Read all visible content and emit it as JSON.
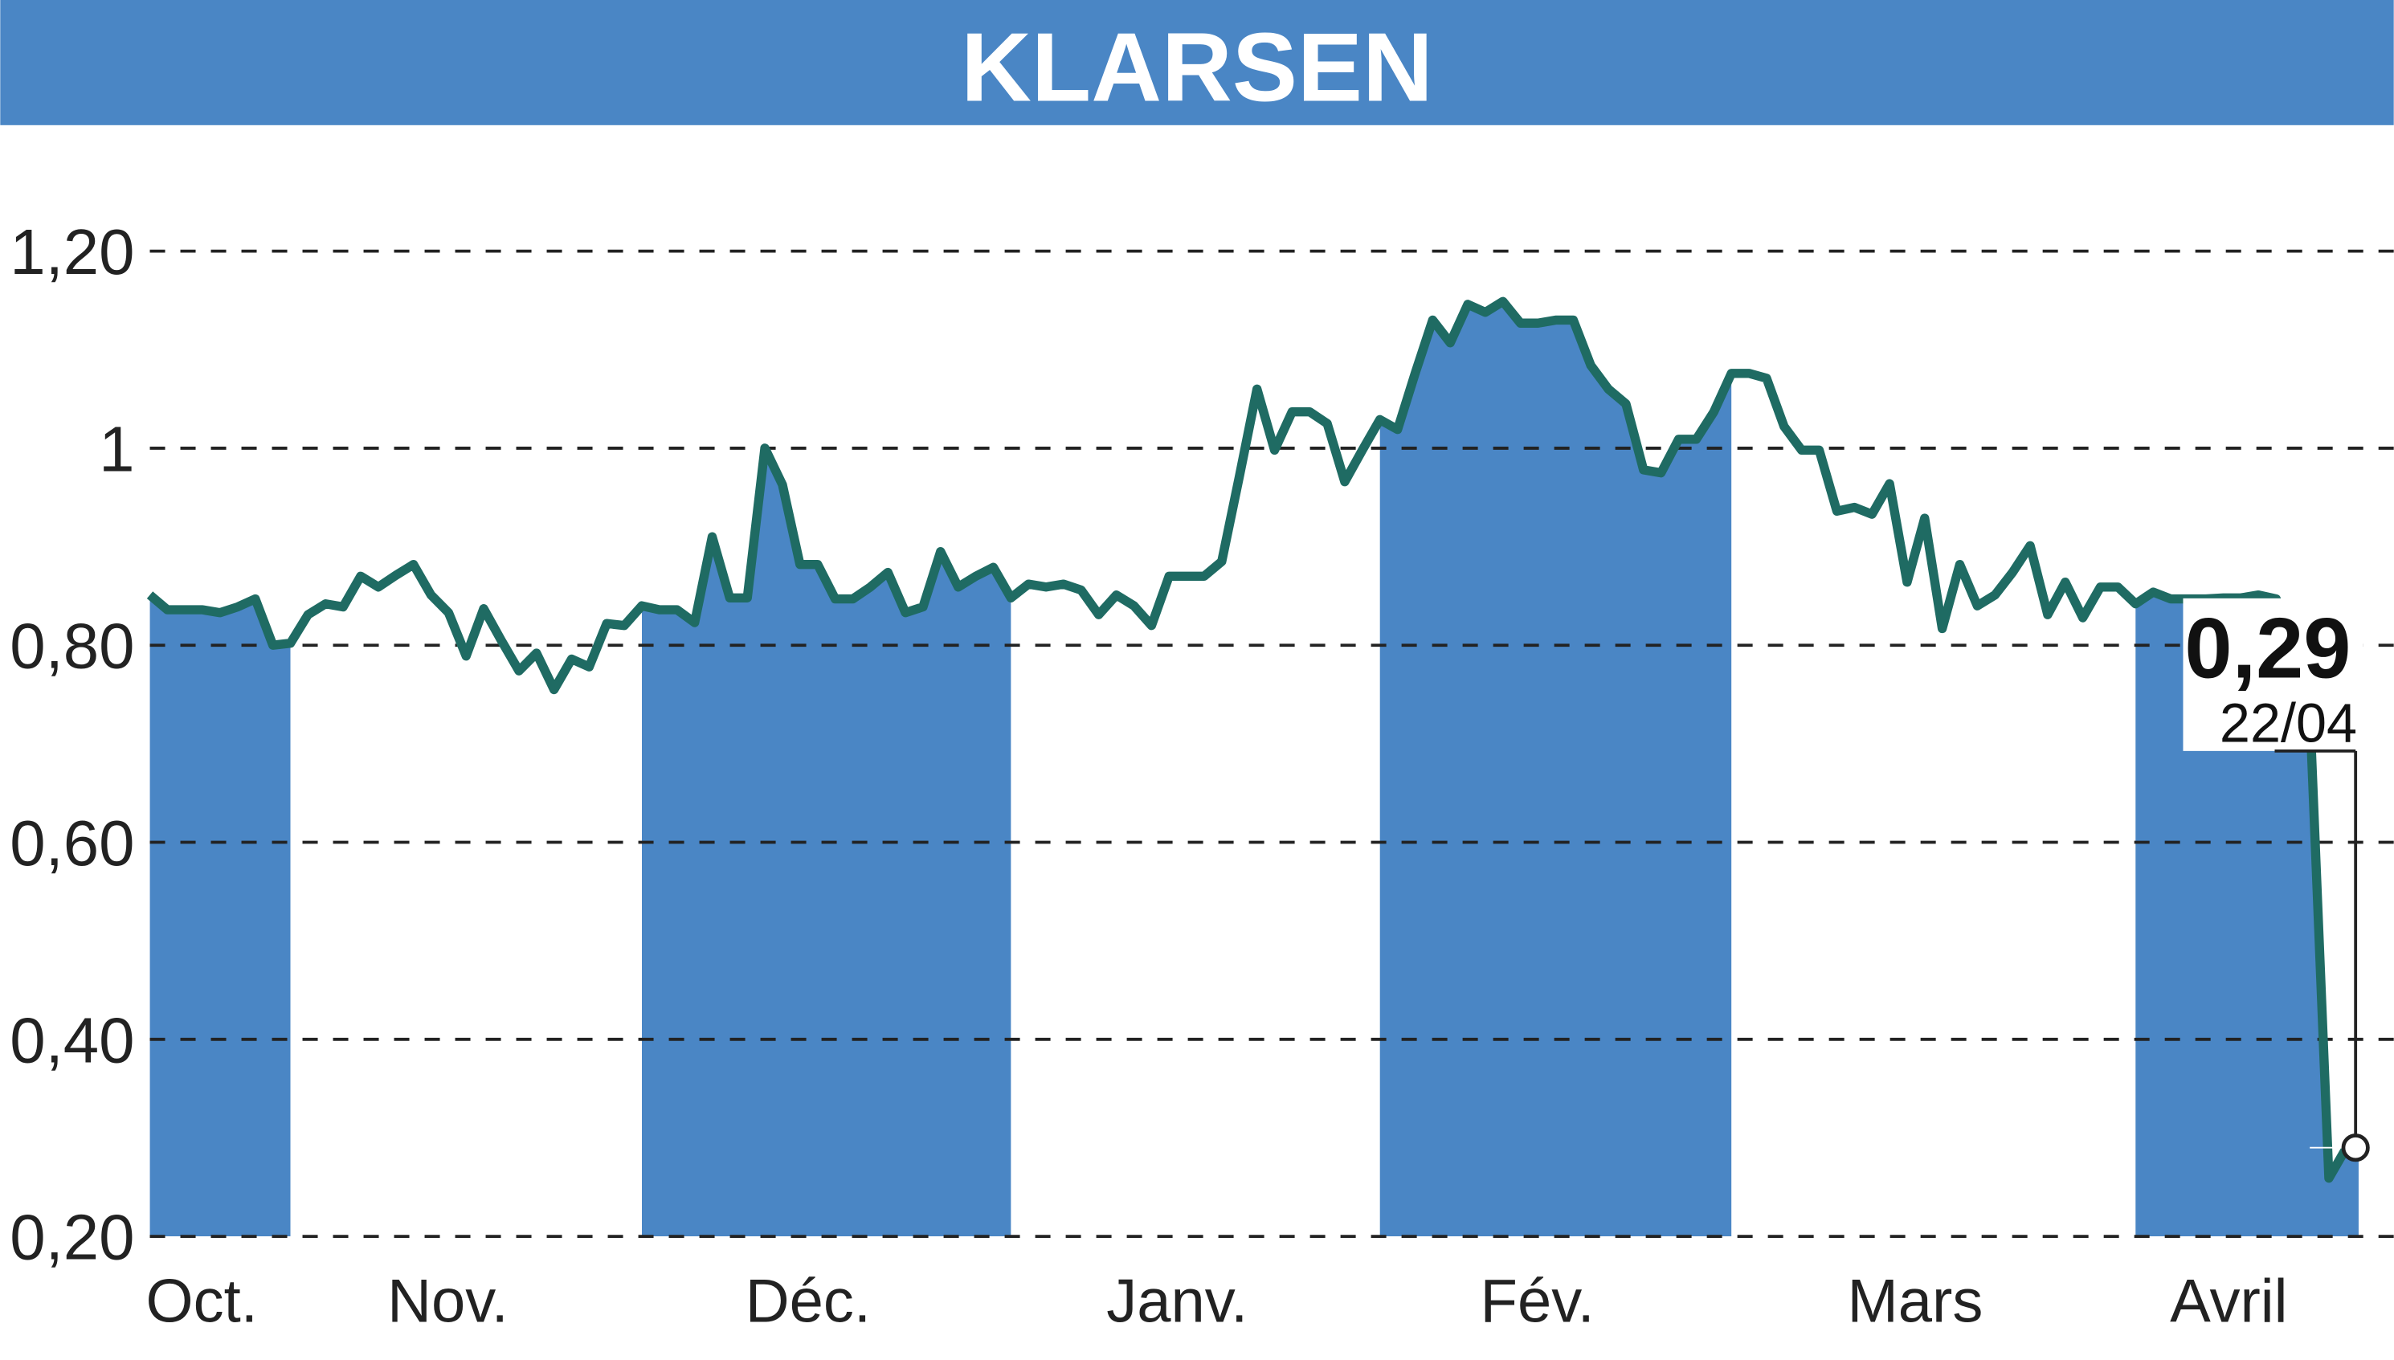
{
  "chart_data": {
    "type": "line",
    "title": "KLARSEN",
    "categories": [
      "Oct.",
      null,
      null,
      null,
      null,
      null,
      null,
      null,
      "Nov.",
      null,
      null,
      null,
      null,
      null,
      null,
      null,
      null,
      null,
      null,
      null,
      null,
      null,
      null,
      null,
      null,
      null,
      null,
      null,
      "Déc.",
      null,
      null,
      null,
      null,
      null,
      null,
      null,
      null,
      null,
      null,
      null,
      null,
      null,
      null,
      null,
      null,
      null,
      null,
      null,
      null,
      "Janv.",
      null,
      null,
      null,
      null,
      null,
      null,
      null,
      null,
      null,
      null,
      null,
      null,
      null,
      null,
      null,
      null,
      null,
      null,
      null,
      null,
      "Fév.",
      null,
      null,
      null,
      null,
      null,
      null,
      null,
      null,
      null,
      null,
      null,
      null,
      null,
      null,
      null,
      null,
      null,
      null,
      null,
      "Mars",
      null,
      null,
      null,
      null,
      null,
      null,
      null,
      null,
      null,
      null,
      null,
      null,
      null,
      null,
      null,
      null,
      null,
      null,
      null,
      null,
      null,
      null,
      "Avril",
      null,
      null,
      null,
      null,
      null,
      null,
      null,
      null,
      null,
      null,
      null,
      null
    ],
    "series": [
      {
        "name": "KLARSEN",
        "color": "#1f6b63",
        "values": [
          0.851,
          0.836,
          0.836,
          0.836,
          0.833,
          0.839,
          0.847,
          0.8,
          0.802,
          0.831,
          0.842,
          0.839,
          0.87,
          0.859,
          0.871,
          0.882,
          0.851,
          0.833,
          0.789,
          0.837,
          0.805,
          0.774,
          0.792,
          0.755,
          0.786,
          0.778,
          0.822,
          0.82,
          0.84,
          0.836,
          0.836,
          0.823,
          0.91,
          0.848,
          0.848,
          1.0,
          0.963,
          0.882,
          0.882,
          0.847,
          0.847,
          0.859,
          0.874,
          0.833,
          0.839,
          0.895,
          0.859,
          0.87,
          0.879,
          0.848,
          0.862,
          0.859,
          0.862,
          0.856,
          0.831,
          0.851,
          0.84,
          0.82,
          0.87,
          0.87,
          0.87,
          0.885,
          0.971,
          1.06,
          0.998,
          1.037,
          1.037,
          1.025,
          0.966,
          0.998,
          1.029,
          1.019,
          1.076,
          1.13,
          1.107,
          1.146,
          1.138,
          1.149,
          1.127,
          1.127,
          1.13,
          1.13,
          1.084,
          1.06,
          1.045,
          0.978,
          0.975,
          1.009,
          1.009,
          1.037,
          1.076,
          1.076,
          1.071,
          1.022,
          0.998,
          0.998,
          0.936,
          0.94,
          0.933,
          0.964,
          0.864,
          0.929,
          0.817,
          0.882,
          0.84,
          0.851,
          0.874,
          0.901,
          0.831,
          0.864,
          0.828,
          0.859,
          0.859,
          0.842,
          0.854,
          0.847,
          0.847,
          0.847,
          0.848,
          0.848,
          0.851,
          0.847,
          0.805,
          0.696,
          0.259,
          0.29
        ]
      }
    ],
    "last_point": {
      "value": 0.29,
      "label": "0,29",
      "date": "22/04"
    },
    "band_color": "#4a86c5",
    "ylim": [
      0.2,
      1.3
    ],
    "yticks": [
      {
        "value": 0.2,
        "label": "0,20"
      },
      {
        "value": 0.4,
        "label": "0,40"
      },
      {
        "value": 0.6,
        "label": "0,60"
      },
      {
        "value": 0.8,
        "label": "0,80"
      },
      1,
      {
        "value": 1.2,
        "label": "1,20"
      }
    ],
    "grid": true
  }
}
